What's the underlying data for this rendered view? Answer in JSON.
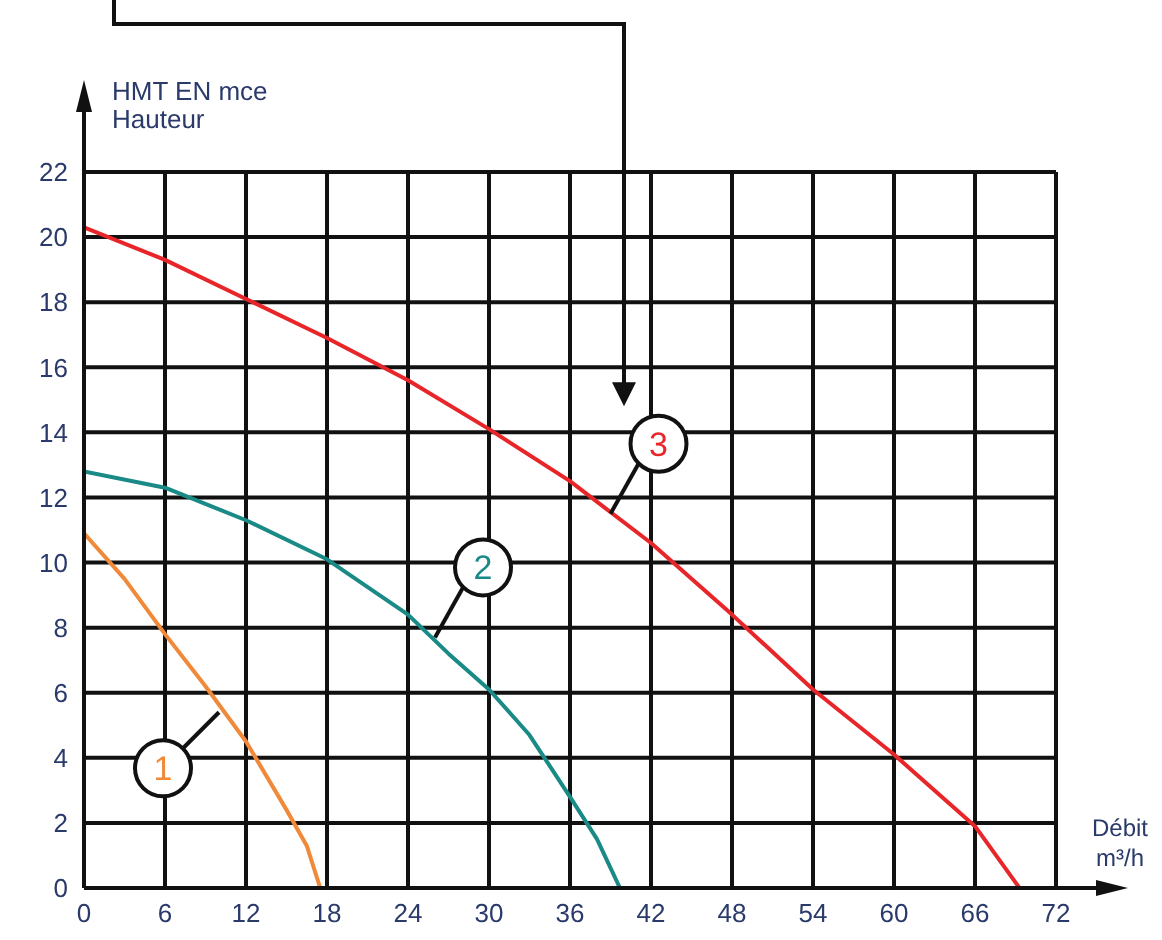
{
  "chart_data": {
    "type": "line",
    "xlabel": "Débit\nm³/h",
    "ylabel": "HMT EN mce\nHauteur",
    "xlim": [
      0,
      72
    ],
    "xticks": [
      0,
      6,
      12,
      18,
      24,
      30,
      36,
      42,
      48,
      54,
      60,
      66,
      72
    ],
    "ylim": [
      0,
      22
    ],
    "yticks": [
      0,
      2,
      4,
      6,
      8,
      10,
      12,
      14,
      16,
      18,
      20,
      22
    ],
    "grid": true,
    "legend": false,
    "marker": "none",
    "line_style": "solid",
    "series": [
      {
        "color": "#f08a3a",
        "x": [
          0,
          3,
          6,
          9,
          12,
          15,
          16.5,
          17.5
        ],
        "values": [
          10.9,
          9.5,
          7.8,
          6.2,
          4.5,
          2.4,
          1.3,
          0
        ]
      },
      {
        "color": "#1a8a86",
        "x": [
          0,
          6,
          12,
          18,
          24,
          27,
          30,
          33,
          36,
          38,
          39.7
        ],
        "values": [
          12.8,
          12.3,
          11.3,
          10.1,
          8.4,
          7.2,
          6.1,
          4.7,
          2.8,
          1.5,
          0
        ]
      },
      {
        "color": "#e8262a",
        "x": [
          0,
          6,
          12,
          18,
          24,
          30,
          36,
          42,
          48,
          54,
          60,
          66,
          69.3
        ],
        "values": [
          20.3,
          19.3,
          18.1,
          16.9,
          15.6,
          14.1,
          12.5,
          10.6,
          8.4,
          6.1,
          4.1,
          1.9,
          0
        ]
      }
    ],
    "annotations": [
      {
        "text": "1",
        "x": 10,
        "y": 5.4
      },
      {
        "text": "2",
        "x": 26,
        "y": 7.7
      },
      {
        "text": "3",
        "x": 39,
        "y": 11.5
      }
    ]
  }
}
